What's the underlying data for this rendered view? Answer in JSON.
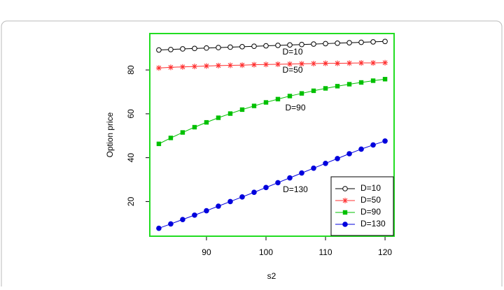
{
  "chart_data": {
    "type": "line",
    "x_label": "s2",
    "y_label": "Option price",
    "x": [
      82,
      84,
      86,
      88,
      90,
      92,
      94,
      96,
      98,
      100,
      102,
      104,
      106,
      108,
      110,
      112,
      114,
      116,
      118,
      120
    ],
    "series": [
      {
        "name": "D=10",
        "color": "#000000",
        "marker": "open-circle",
        "values": [
          89.1,
          89.3,
          89.6,
          89.8,
          90.0,
          90.2,
          90.4,
          90.6,
          90.8,
          91.0,
          91.2,
          91.4,
          91.6,
          91.8,
          92.0,
          92.2,
          92.4,
          92.6,
          92.8,
          93.0
        ]
      },
      {
        "name": "D=50",
        "color": "#ff3030",
        "marker": "asterisk",
        "values": [
          80.9,
          81.2,
          81.4,
          81.6,
          81.8,
          82.0,
          82.1,
          82.2,
          82.4,
          82.5,
          82.6,
          82.7,
          82.8,
          82.9,
          83.0,
          83.0,
          83.1,
          83.2,
          83.2,
          83.3
        ]
      },
      {
        "name": "D=90",
        "color": "#00c000",
        "marker": "square",
        "values": [
          46.3,
          49.0,
          51.5,
          53.9,
          56.1,
          58.2,
          60.1,
          61.9,
          63.6,
          65.2,
          66.7,
          68.1,
          69.3,
          70.5,
          71.6,
          72.6,
          73.5,
          74.3,
          75.1,
          75.8
        ]
      },
      {
        "name": "D=130",
        "color": "#0000dd",
        "marker": "filled-circle",
        "values": [
          7.8,
          9.8,
          11.8,
          13.8,
          15.8,
          17.9,
          20.0,
          22.1,
          24.2,
          26.4,
          28.6,
          30.8,
          33.0,
          35.2,
          37.4,
          39.6,
          41.8,
          43.9,
          45.8,
          47.6
        ]
      }
    ],
    "annotations": [
      "D=10",
      "D=50",
      "D=90",
      "D=130"
    ],
    "xlim": [
      80.48,
      121.52
    ],
    "xticks": [
      90,
      100,
      110,
      120
    ],
    "ylim": [
      4.2,
      96.6
    ],
    "yticks": [
      20,
      40,
      60,
      80
    ],
    "grid": false,
    "legend_position": "bottom-right",
    "frame_color": "#22dd22"
  }
}
